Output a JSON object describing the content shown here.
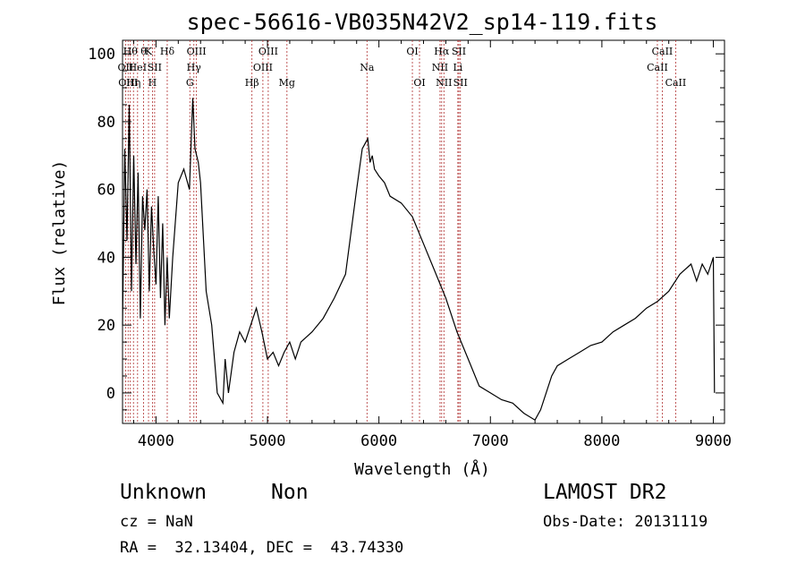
{
  "chart_data": {
    "type": "line",
    "title": "spec-56616-VB035N42V2_sp14-119.fits",
    "xlabel": "Wavelength (Å)",
    "ylabel": "Flux (relative)",
    "xlim": [
      3700,
      9100
    ],
    "ylim": [
      -9,
      104
    ],
    "xticks": [
      4000,
      5000,
      6000,
      7000,
      8000,
      9000
    ],
    "yticks": [
      0,
      20,
      40,
      60,
      80,
      100
    ],
    "grid": false,
    "series": [
      {
        "x": [
          3700,
          3720,
          3740,
          3760,
          3780,
          3800,
          3820,
          3840,
          3860,
          3880,
          3900,
          3920,
          3940,
          3960,
          3980,
          4000,
          4020,
          4040,
          4060,
          4080,
          4100,
          4120,
          4150,
          4200,
          4250,
          4300,
          4330,
          4350,
          4380,
          4400,
          4450,
          4500,
          4550,
          4600,
          4620,
          4650,
          4700,
          4750,
          4800,
          4850,
          4900,
          4950,
          5000,
          5050,
          5100,
          5150,
          5200,
          5250,
          5300,
          5400,
          5500,
          5600,
          5700,
          5800,
          5850,
          5900,
          5920,
          5940,
          5960,
          6000,
          6050,
          6100,
          6200,
          6300,
          6400,
          6500,
          6600,
          6700,
          6800,
          6900,
          7000,
          7100,
          7200,
          7300,
          7400,
          7450,
          7500,
          7550,
          7600,
          7700,
          7800,
          7900,
          8000,
          8100,
          8200,
          8300,
          8400,
          8500,
          8600,
          8700,
          8800,
          8850,
          8900,
          8950,
          9000,
          9010
        ],
        "y": [
          20,
          72,
          45,
          85,
          30,
          70,
          38,
          65,
          22,
          58,
          48,
          60,
          30,
          55,
          42,
          32,
          58,
          28,
          50,
          20,
          40,
          22,
          40,
          62,
          66,
          60,
          87,
          72,
          68,
          62,
          30,
          20,
          0,
          -3,
          10,
          0,
          12,
          18,
          15,
          20,
          25,
          18,
          10,
          12,
          8,
          12,
          15,
          10,
          15,
          18,
          22,
          28,
          35,
          60,
          72,
          75,
          68,
          70,
          66,
          64,
          62,
          58,
          56,
          52,
          44,
          36,
          28,
          18,
          10,
          2,
          0,
          -2,
          -3,
          -6,
          -8,
          -5,
          0,
          5,
          8,
          10,
          12,
          14,
          15,
          18,
          20,
          22,
          25,
          27,
          30,
          35,
          38,
          33,
          38,
          35,
          40,
          0
        ]
      }
    ],
    "line_labels": [
      {
        "x": 3727,
        "text": "OII",
        "row": 1
      },
      {
        "x": 3750,
        "text": "OIII",
        "row": 2
      },
      {
        "x": 3770,
        "text": "Hθ",
        "row": 0
      },
      {
        "x": 3798,
        "text": "Hη",
        "row": 2
      },
      {
        "x": 3835,
        "text": "HeI",
        "row": 1
      },
      {
        "x": 3889,
        "text": "θ",
        "row": 0
      },
      {
        "x": 3933,
        "text": "K",
        "row": 0
      },
      {
        "x": 3968,
        "text": "H",
        "row": 2
      },
      {
        "x": 3988,
        "text": "SII",
        "row": 1
      },
      {
        "x": 4101,
        "text": "Hδ",
        "row": 0
      },
      {
        "x": 4304,
        "text": "G",
        "row": 2
      },
      {
        "x": 4340,
        "text": "Hγ",
        "row": 1
      },
      {
        "x": 4363,
        "text": "OIII",
        "row": 0
      },
      {
        "x": 4861,
        "text": "Hβ",
        "row": 2
      },
      {
        "x": 4959,
        "text": "OIII",
        "row": 1
      },
      {
        "x": 5007,
        "text": "OIII",
        "row": 0
      },
      {
        "x": 5175,
        "text": "Mg",
        "row": 2
      },
      {
        "x": 5893,
        "text": "Na",
        "row": 1
      },
      {
        "x": 6300,
        "text": "OI",
        "row": 0
      },
      {
        "x": 6364,
        "text": "OI",
        "row": 2
      },
      {
        "x": 6548,
        "text": "NII",
        "row": 1
      },
      {
        "x": 6563,
        "text": "Hα",
        "row": 0
      },
      {
        "x": 6583,
        "text": "NII",
        "row": 2
      },
      {
        "x": 6708,
        "text": "Li",
        "row": 1
      },
      {
        "x": 6717,
        "text": "SII",
        "row": 0
      },
      {
        "x": 6731,
        "text": "SII",
        "row": 2
      },
      {
        "x": 8498,
        "text": "CaII",
        "row": 1
      },
      {
        "x": 8542,
        "text": "CaII",
        "row": 0
      },
      {
        "x": 8662,
        "text": "CaII",
        "row": 2
      }
    ]
  },
  "info": {
    "class": "Unknown",
    "subclass": "Non",
    "survey": "LAMOST DR2",
    "cz": "cz = NaN",
    "obs_date": "Obs-Date: 20131119",
    "coords": "RA =  32.13404, DEC =  43.74330"
  },
  "colors": {
    "line": "#000000",
    "marker_lines": "#b03030",
    "axes": "#000000"
  }
}
